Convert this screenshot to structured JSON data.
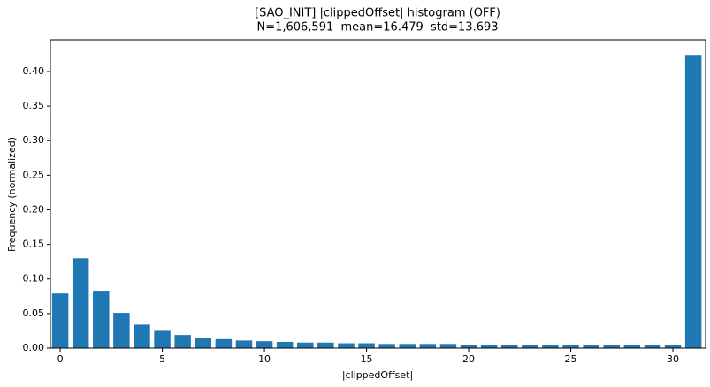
{
  "chart_data": {
    "type": "bar",
    "title": "[SAO_INIT] |clippedOffset| histogram (OFF)",
    "subtitle": "N=1,606,591  mean=16.479  std=13.693",
    "x_label": "|clippedOffset|",
    "y_label": "Frequency (normalized)",
    "x": [
      0,
      1,
      2,
      3,
      4,
      5,
      6,
      7,
      8,
      9,
      10,
      11,
      12,
      13,
      14,
      15,
      16,
      17,
      18,
      19,
      20,
      21,
      22,
      23,
      24,
      25,
      26,
      27,
      28,
      29,
      30,
      31
    ],
    "values": [
      0.079,
      0.13,
      0.083,
      0.051,
      0.034,
      0.025,
      0.019,
      0.015,
      0.013,
      0.011,
      0.01,
      0.009,
      0.008,
      0.008,
      0.007,
      0.007,
      0.006,
      0.006,
      0.006,
      0.006,
      0.005,
      0.005,
      0.005,
      0.005,
      0.005,
      0.005,
      0.005,
      0.005,
      0.005,
      0.004,
      0.004,
      0.424
    ],
    "color": "#1f77b4",
    "xlim": [
      -0.48,
      31.6
    ],
    "ylim": [
      0,
      0.446
    ],
    "xticks": [
      0,
      5,
      10,
      15,
      20,
      25,
      30
    ],
    "yticks": [
      {
        "value": 0,
        "label": "0.00"
      },
      {
        "value": 0.05,
        "label": "0.05"
      },
      {
        "value": 0.1,
        "label": "0.10"
      },
      {
        "value": 0.15,
        "label": "0.15"
      },
      {
        "value": 0.2,
        "label": "0.20"
      },
      {
        "value": 0.25,
        "label": "0.25"
      },
      {
        "value": 0.3,
        "label": "0.30"
      },
      {
        "value": 0.35,
        "label": "0.35"
      },
      {
        "value": 0.4,
        "label": "0.40"
      }
    ]
  }
}
